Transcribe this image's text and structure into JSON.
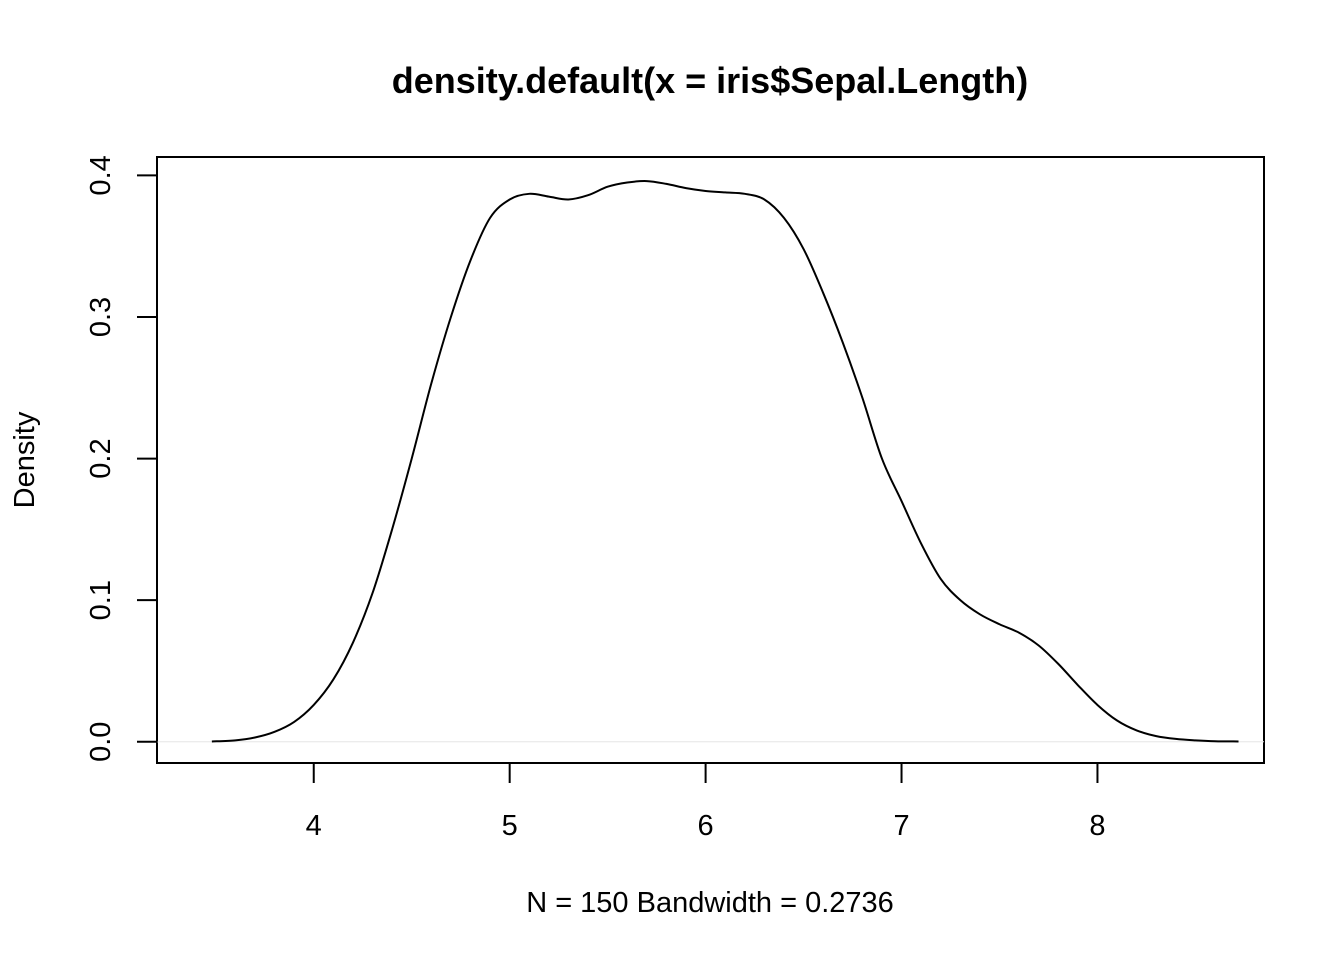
{
  "chart_data": {
    "type": "line",
    "title": "density.default(x = iris$Sepal.Length)",
    "xlabel": "N = 150   Bandwidth = 0.2736",
    "ylabel": "Density",
    "xlim": [
      3.2,
      8.85
    ],
    "ylim": [
      -0.015,
      0.413
    ],
    "x_ticks": [
      4,
      5,
      6,
      7,
      8
    ],
    "x_tick_labels": [
      "4",
      "5",
      "6",
      "7",
      "8"
    ],
    "y_ticks": [
      0.0,
      0.1,
      0.2,
      0.3,
      0.4
    ],
    "y_tick_labels": [
      "0.0",
      "0.1",
      "0.2",
      "0.3",
      "0.4"
    ],
    "grid": false,
    "zero_line": true,
    "line_color": "#000000",
    "series": [
      {
        "x": [
          3.48,
          3.6,
          3.7,
          3.8,
          3.9,
          4.0,
          4.1,
          4.2,
          4.3,
          4.4,
          4.5,
          4.6,
          4.7,
          4.8,
          4.9,
          5.0,
          5.1,
          5.2,
          5.3,
          5.4,
          5.5,
          5.6,
          5.7,
          5.8,
          5.9,
          6.0,
          6.1,
          6.2,
          6.3,
          6.4,
          6.5,
          6.6,
          6.7,
          6.8,
          6.9,
          7.0,
          7.1,
          7.2,
          7.3,
          7.4,
          7.5,
          7.6,
          7.7,
          7.8,
          7.9,
          8.0,
          8.1,
          8.2,
          8.3,
          8.4,
          8.5,
          8.6,
          8.72
        ],
        "values": [
          0.0002,
          0.001,
          0.003,
          0.007,
          0.014,
          0.026,
          0.044,
          0.07,
          0.105,
          0.15,
          0.2,
          0.253,
          0.3,
          0.34,
          0.37,
          0.383,
          0.387,
          0.385,
          0.383,
          0.386,
          0.392,
          0.395,
          0.396,
          0.394,
          0.391,
          0.389,
          0.388,
          0.387,
          0.383,
          0.37,
          0.348,
          0.317,
          0.282,
          0.243,
          0.2,
          0.17,
          0.14,
          0.115,
          0.1,
          0.09,
          0.083,
          0.077,
          0.068,
          0.055,
          0.04,
          0.026,
          0.015,
          0.008,
          0.004,
          0.002,
          0.001,
          0.0004,
          0.0002
        ]
      }
    ]
  }
}
